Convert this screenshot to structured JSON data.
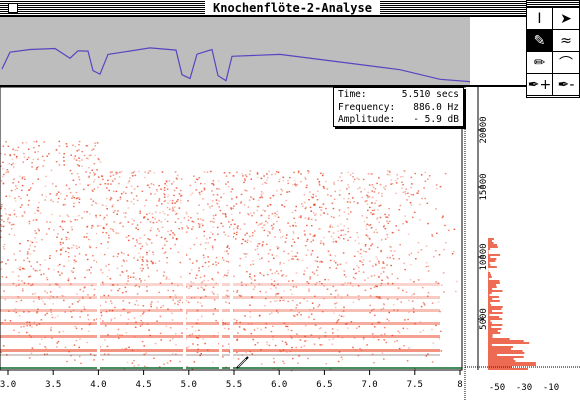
{
  "window": {
    "title": "Knochenflöte-2-Analyse"
  },
  "readout": {
    "time_label": "Time:",
    "time_value": "5.510 secs",
    "frequency_label": "Frequency:",
    "frequency_value": "886.0 Hz",
    "amplitude_label": "Amplitude:",
    "amplitude_value": "-  5.9 dB"
  },
  "tools": [
    {
      "name": "text-cursor-tool",
      "glyph": "I"
    },
    {
      "name": "arrow-tool",
      "glyph": "➤"
    },
    {
      "name": "eyedropper-tool",
      "glyph": "✎"
    },
    {
      "name": "wave-tool",
      "glyph": "≈"
    },
    {
      "name": "pencil-tool",
      "glyph": "✏"
    },
    {
      "name": "lasso-tool",
      "glyph": "⌒"
    },
    {
      "name": "pen-plus-tool",
      "glyph": "✒+"
    },
    {
      "name": "pen-minus-tool",
      "glyph": "✒-"
    }
  ],
  "time_axis": {
    "ticks": [
      "3.0",
      "3.5",
      "4.0",
      "4.5",
      "5.0",
      "5.5",
      "6.0",
      "6.5",
      "7.0",
      "7.5",
      "8"
    ]
  },
  "frequency_axis": {
    "ticks": [
      "20000",
      "15000",
      "10000",
      "5000"
    ]
  },
  "amplitude_axis": {
    "ticks": [
      "-50",
      "-30",
      "-10"
    ]
  },
  "colors": {
    "spectrum": "#e83a1a",
    "envelope": "#5a44c0",
    "overview_bg": "#bdbdbd"
  }
}
